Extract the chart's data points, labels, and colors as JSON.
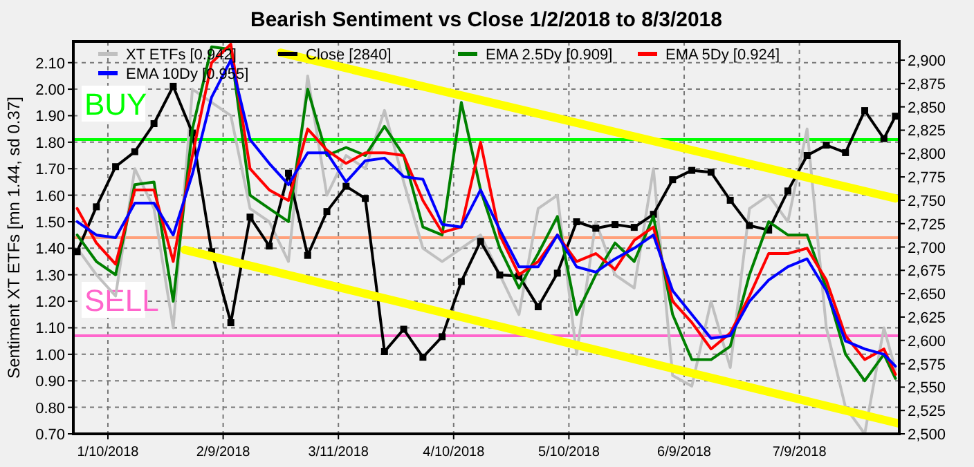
{
  "chart_data": {
    "type": "line",
    "title": "Bearish Sentiment vs Close 1/2/2018 to 8/3/2018",
    "ylabel": "Sentiment XT ETFs [mn 1.44, sd 0.37]",
    "x": [
      "2018-01-02",
      "2018-01-07",
      "2018-01-12",
      "2018-01-17",
      "2018-01-22",
      "2018-01-27",
      "2018-02-01",
      "2018-02-06",
      "2018-02-11",
      "2018-02-16",
      "2018-02-21",
      "2018-02-26",
      "2018-03-03",
      "2018-03-08",
      "2018-03-13",
      "2018-03-18",
      "2018-03-23",
      "2018-03-28",
      "2018-04-02",
      "2018-04-07",
      "2018-04-12",
      "2018-04-17",
      "2018-04-22",
      "2018-04-27",
      "2018-05-02",
      "2018-05-07",
      "2018-05-12",
      "2018-05-17",
      "2018-05-22",
      "2018-05-27",
      "2018-06-01",
      "2018-06-06",
      "2018-06-11",
      "2018-06-16",
      "2018-06-21",
      "2018-06-26",
      "2018-07-01",
      "2018-07-06",
      "2018-07-11",
      "2018-07-16",
      "2018-07-21",
      "2018-07-26",
      "2018-07-31",
      "2018-08-03"
    ],
    "xlim": [
      "2018-01-01",
      "2018-08-04"
    ],
    "xticks": [
      {
        "value": "2018-01-10",
        "label": "1/10/2018"
      },
      {
        "value": "2018-02-09",
        "label": "2/9/2018"
      },
      {
        "value": "2018-03-11",
        "label": "3/11/2018"
      },
      {
        "value": "2018-04-10",
        "label": "4/10/2018"
      },
      {
        "value": "2018-05-10",
        "label": "5/10/2018"
      },
      {
        "value": "2018-06-09",
        "label": "6/9/2018"
      },
      {
        "value": "2018-07-09",
        "label": "7/9/2018"
      }
    ],
    "ylim": [
      0.7,
      2.18
    ],
    "yticks": [
      {
        "value": 0.7,
        "label": "0.70"
      },
      {
        "value": 0.8,
        "label": "0.80"
      },
      {
        "value": 0.9,
        "label": "0.90"
      },
      {
        "value": 1.0,
        "label": "1.00"
      },
      {
        "value": 1.1,
        "label": "1.10"
      },
      {
        "value": 1.2,
        "label": "1.20"
      },
      {
        "value": 1.3,
        "label": "1.30"
      },
      {
        "value": 1.4,
        "label": "1.40"
      },
      {
        "value": 1.5,
        "label": "1.50"
      },
      {
        "value": 1.6,
        "label": "1.60"
      },
      {
        "value": 1.7,
        "label": "1.70"
      },
      {
        "value": 1.8,
        "label": "1.80"
      },
      {
        "value": 1.9,
        "label": "1.90"
      },
      {
        "value": 2.0,
        "label": "2.00"
      },
      {
        "value": 2.1,
        "label": "2.10"
      }
    ],
    "y2lim": [
      2500,
      2920
    ],
    "y2ticks": [
      {
        "value": 2500,
        "label": "2,500"
      },
      {
        "value": 2525,
        "label": "2,525"
      },
      {
        "value": 2550,
        "label": "2,550"
      },
      {
        "value": 2575,
        "label": "2,575"
      },
      {
        "value": 2600,
        "label": "2,600"
      },
      {
        "value": 2625,
        "label": "2,625"
      },
      {
        "value": 2650,
        "label": "2,650"
      },
      {
        "value": 2675,
        "label": "2,675"
      },
      {
        "value": 2700,
        "label": "2,700"
      },
      {
        "value": 2725,
        "label": "2,725"
      },
      {
        "value": 2750,
        "label": "2,750"
      },
      {
        "value": 2775,
        "label": "2,775"
      },
      {
        "value": 2800,
        "label": "2,800"
      },
      {
        "value": 2825,
        "label": "2,825"
      },
      {
        "value": 2850,
        "label": "2,850"
      },
      {
        "value": 2875,
        "label": "2,875"
      },
      {
        "value": 2900,
        "label": "2,900"
      }
    ],
    "grid": true,
    "legend": "top",
    "line_style": "solid",
    "ref_lines": [
      {
        "axis": "y",
        "value": 1.81,
        "label": "BUY",
        "color": "#00ff00"
      },
      {
        "axis": "y",
        "value": 1.44,
        "label": null,
        "color": "#ffa07a"
      },
      {
        "axis": "y",
        "value": 1.07,
        "label": "SELL",
        "color": "#ff66cc"
      }
    ],
    "series": [
      {
        "name": "XT ETFs [0.942]",
        "color": "#c0c0c0",
        "marker": "none",
        "values": [
          1.4,
          1.3,
          1.22,
          1.7,
          1.55,
          1.1,
          2.0,
          null,
          1.9,
          1.55,
          1.5,
          1.35,
          2.05,
          1.6,
          1.75,
          1.7,
          1.92,
          1.65,
          1.4,
          1.35,
          null,
          1.45,
          1.3,
          1.15,
          1.55,
          1.6,
          1.0,
          1.5,
          1.3,
          1.25,
          1.7,
          0.92,
          0.88,
          1.2,
          0.95,
          1.55,
          1.6,
          1.5,
          1.85,
          1.1,
          0.8,
          0.7,
          1.1,
          0.942
        ]
      },
      {
        "name": "Close [2840]",
        "color": "#000000",
        "axis": "y2",
        "marker": "square",
        "values": [
          2695,
          2743,
          2786,
          2802,
          2832,
          2872,
          2822,
          2695,
          2619,
          2732,
          2701,
          2779,
          2691,
          2738,
          2765,
          2752,
          2588,
          2612,
          2582,
          2604,
          2663,
          2706,
          2670,
          2669,
          2636,
          2672,
          2727,
          2720,
          2724,
          2721,
          2735,
          2772,
          2782,
          2780,
          2750,
          2723,
          2718,
          2760,
          2798,
          2809,
          2801,
          2846,
          2816,
          2840
        ]
      },
      {
        "name": "EMA 2.5Dy [0.909]",
        "color": "#008000",
        "marker": "none",
        "values": [
          1.45,
          1.35,
          1.3,
          1.64,
          1.65,
          1.2,
          1.85,
          2.16,
          2.15,
          1.6,
          1.55,
          1.5,
          2.0,
          1.75,
          1.78,
          1.75,
          1.86,
          1.75,
          1.48,
          1.45,
          1.95,
          1.62,
          1.4,
          1.25,
          1.38,
          1.52,
          1.15,
          1.3,
          1.42,
          1.35,
          1.52,
          1.15,
          0.98,
          0.98,
          1.03,
          1.3,
          1.5,
          1.45,
          1.45,
          1.25,
          1.0,
          0.9,
          1.0,
          0.909
        ]
      },
      {
        "name": "EMA 5Dy [0.924]",
        "color": "#ff0000",
        "marker": "none",
        "values": [
          1.55,
          1.42,
          1.34,
          1.62,
          1.62,
          1.35,
          1.75,
          2.1,
          2.17,
          1.7,
          1.62,
          1.58,
          1.85,
          1.77,
          1.72,
          1.76,
          1.76,
          1.75,
          1.58,
          1.46,
          1.48,
          1.8,
          1.45,
          1.3,
          1.35,
          1.45,
          1.35,
          1.38,
          1.32,
          1.43,
          1.48,
          1.2,
          1.12,
          1.02,
          1.08,
          1.22,
          1.38,
          1.38,
          1.4,
          1.28,
          1.07,
          0.98,
          1.02,
          0.924
        ]
      },
      {
        "name": "EMA 10Dy [0.955]",
        "color": "#0000ff",
        "marker": "none",
        "values": [
          1.5,
          1.45,
          1.44,
          1.57,
          1.57,
          1.45,
          1.68,
          1.97,
          2.11,
          1.81,
          1.72,
          1.64,
          1.76,
          1.76,
          1.65,
          1.73,
          1.74,
          1.67,
          1.66,
          1.49,
          1.48,
          1.62,
          1.47,
          1.33,
          1.33,
          1.45,
          1.33,
          1.31,
          1.36,
          1.4,
          1.45,
          1.24,
          1.15,
          1.06,
          1.07,
          1.2,
          1.28,
          1.33,
          1.36,
          1.24,
          1.05,
          1.02,
          1.0,
          0.955
        ]
      },
      {
        "type": "line",
        "color": "#ffff00",
        "axis": "y2",
        "marker": "none",
        "x": [
          "2018-02-24",
          "2018-08-03"
        ],
        "values": [
          2908,
          2752
        ]
      },
      {
        "type": "line",
        "color": "#ffff00",
        "axis": "y2",
        "marker": "none",
        "x": [
          "2018-01-30",
          "2018-08-04"
        ],
        "values": [
          2697,
          2511
        ]
      }
    ]
  }
}
